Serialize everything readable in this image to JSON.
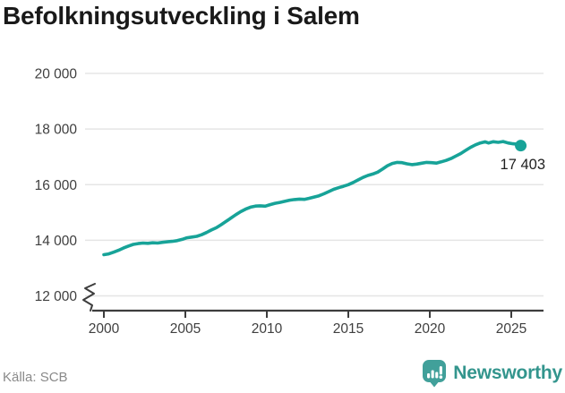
{
  "title": "Befolkningsutveckling i Salem",
  "source": "Källa: SCB",
  "brand": {
    "name": "Newsworthy",
    "icon": "newsworthy-bubble-chart-icon",
    "wordmark_color": "#33958d",
    "icon_color": "#41a09a"
  },
  "chart_data": {
    "type": "line",
    "title": "Befolkningsutveckling i Salem",
    "xlabel": "",
    "ylabel": "",
    "grid": "horizontal",
    "legend": "none",
    "axis_break_bottom_left": true,
    "xlim": [
      1999.3,
      2026.9
    ],
    "ylim": [
      12000,
      20000
    ],
    "x_ticks": [
      2000,
      2005,
      2010,
      2015,
      2020,
      2025
    ],
    "x_tick_labels": [
      "2000",
      "2005",
      "2010",
      "2015",
      "2020",
      "2025"
    ],
    "y_ticks": [
      12000,
      14000,
      16000,
      18000,
      20000
    ],
    "y_tick_labels": [
      "12 000",
      "14 000",
      "16 000",
      "18 000",
      "20 000"
    ],
    "line_color": "#17a398",
    "grid_color": "#e5e5e5",
    "axis_color": "#3d3d3d",
    "tick_label_color": "#3f3f3f",
    "end_point": {
      "x": 2025.58,
      "y": 17403,
      "label": "17 403"
    },
    "series": [
      {
        "name": "Befolkning",
        "points": [
          [
            2000.0,
            13480
          ],
          [
            2000.3,
            13510
          ],
          [
            2000.6,
            13570
          ],
          [
            2000.9,
            13640
          ],
          [
            2001.2,
            13720
          ],
          [
            2001.5,
            13790
          ],
          [
            2001.8,
            13850
          ],
          [
            2002.1,
            13880
          ],
          [
            2002.4,
            13900
          ],
          [
            2002.7,
            13890
          ],
          [
            2003.0,
            13910
          ],
          [
            2003.3,
            13900
          ],
          [
            2003.6,
            13925
          ],
          [
            2003.9,
            13945
          ],
          [
            2004.2,
            13960
          ],
          [
            2004.5,
            13985
          ],
          [
            2004.8,
            14030
          ],
          [
            2005.1,
            14090
          ],
          [
            2005.4,
            14115
          ],
          [
            2005.7,
            14140
          ],
          [
            2006.0,
            14200
          ],
          [
            2006.3,
            14280
          ],
          [
            2006.6,
            14370
          ],
          [
            2006.9,
            14450
          ],
          [
            2007.2,
            14560
          ],
          [
            2007.5,
            14680
          ],
          [
            2007.8,
            14800
          ],
          [
            2008.1,
            14920
          ],
          [
            2008.4,
            15030
          ],
          [
            2008.7,
            15120
          ],
          [
            2009.0,
            15190
          ],
          [
            2009.3,
            15230
          ],
          [
            2009.6,
            15240
          ],
          [
            2009.9,
            15225
          ],
          [
            2010.2,
            15280
          ],
          [
            2010.5,
            15330
          ],
          [
            2010.8,
            15360
          ],
          [
            2011.1,
            15400
          ],
          [
            2011.4,
            15440
          ],
          [
            2011.7,
            15465
          ],
          [
            2012.0,
            15480
          ],
          [
            2012.3,
            15470
          ],
          [
            2012.6,
            15510
          ],
          [
            2012.9,
            15555
          ],
          [
            2013.2,
            15600
          ],
          [
            2013.5,
            15670
          ],
          [
            2013.8,
            15750
          ],
          [
            2014.1,
            15830
          ],
          [
            2014.4,
            15890
          ],
          [
            2014.7,
            15940
          ],
          [
            2015.0,
            16000
          ],
          [
            2015.3,
            16080
          ],
          [
            2015.6,
            16170
          ],
          [
            2015.9,
            16260
          ],
          [
            2016.2,
            16330
          ],
          [
            2016.5,
            16380
          ],
          [
            2016.8,
            16450
          ],
          [
            2017.1,
            16560
          ],
          [
            2017.4,
            16680
          ],
          [
            2017.7,
            16760
          ],
          [
            2018.0,
            16800
          ],
          [
            2018.3,
            16790
          ],
          [
            2018.6,
            16750
          ],
          [
            2018.9,
            16720
          ],
          [
            2019.2,
            16740
          ],
          [
            2019.5,
            16770
          ],
          [
            2019.8,
            16800
          ],
          [
            2020.1,
            16790
          ],
          [
            2020.4,
            16775
          ],
          [
            2020.7,
            16820
          ],
          [
            2021.0,
            16870
          ],
          [
            2021.3,
            16940
          ],
          [
            2021.6,
            17030
          ],
          [
            2021.9,
            17120
          ],
          [
            2022.2,
            17230
          ],
          [
            2022.5,
            17340
          ],
          [
            2022.8,
            17430
          ],
          [
            2023.1,
            17500
          ],
          [
            2023.4,
            17540
          ],
          [
            2023.6,
            17500
          ],
          [
            2023.9,
            17545
          ],
          [
            2024.2,
            17520
          ],
          [
            2024.5,
            17550
          ],
          [
            2024.8,
            17500
          ],
          [
            2025.1,
            17470
          ],
          [
            2025.35,
            17455
          ],
          [
            2025.58,
            17403
          ]
        ]
      }
    ]
  }
}
